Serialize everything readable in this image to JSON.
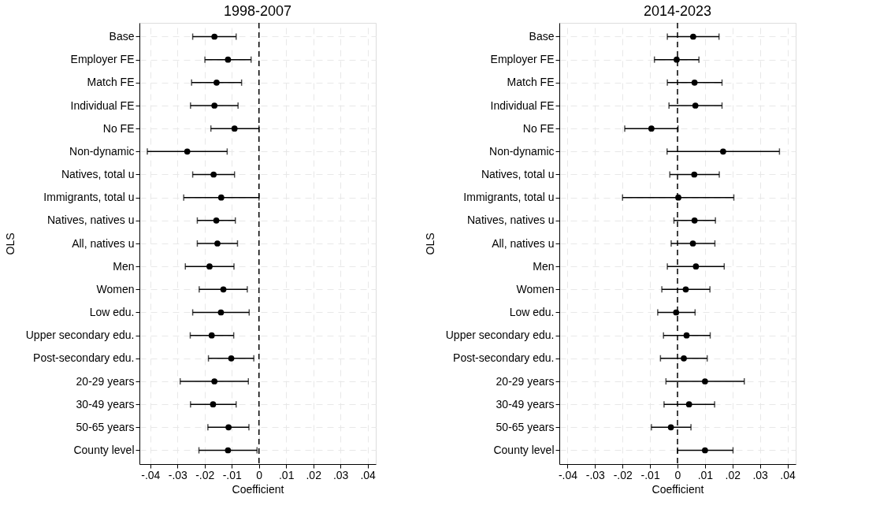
{
  "chart_data": [
    {
      "type": "scatter",
      "orientation": "horizontal",
      "title": "1998-2007",
      "xlabel": "Coefficient",
      "ylabel": "OLS",
      "marker": "circle",
      "color": "#000000",
      "grid": true,
      "categories": [
        "Base",
        "Employer FE",
        "Match FE",
        "Individual FE",
        "No FE",
        "Non-dynamic",
        "Natives, total u",
        "Immigrants, total u",
        "Natives, natives u",
        "All, natives u",
        "Men",
        "Women",
        "Low edu.",
        "Upper secondary edu.",
        "Post-secondary edu.",
        "20-29 years",
        "30-49 years",
        "50-65 years",
        "County level"
      ],
      "values": [
        -0.0164,
        -0.0114,
        -0.0156,
        -0.0164,
        -0.009,
        -0.0264,
        -0.0167,
        -0.0139,
        -0.0157,
        -0.0153,
        -0.0182,
        -0.0131,
        -0.014,
        -0.0174,
        -0.0102,
        -0.0164,
        -0.0169,
        -0.0112,
        -0.0114
      ],
      "errors": [
        [
          -0.0244,
          -0.0084
        ],
        [
          -0.0199,
          -0.0029
        ],
        [
          -0.0248,
          -0.0064
        ],
        [
          -0.0252,
          -0.0077
        ],
        [
          -0.0177,
          0.0
        ],
        [
          -0.0411,
          -0.0117
        ],
        [
          -0.0244,
          -0.009
        ],
        [
          -0.0277,
          0.0
        ],
        [
          -0.0227,
          -0.0087
        ],
        [
          -0.0227,
          -0.0079
        ],
        [
          -0.0271,
          -0.0092
        ],
        [
          -0.022,
          -0.0043
        ],
        [
          -0.0244,
          -0.0036
        ],
        [
          -0.0253,
          -0.0093
        ],
        [
          -0.0186,
          -0.0019
        ],
        [
          -0.029,
          -0.0039
        ],
        [
          -0.0252,
          -0.0084
        ],
        [
          -0.0188,
          -0.0037
        ],
        [
          -0.0221,
          -0.0007
        ]
      ],
      "xlim": [
        -0.044,
        0.043
      ],
      "xticks": [
        {
          "value": -0.04,
          "label": "-.04"
        },
        {
          "value": -0.03,
          "label": "-.03"
        },
        {
          "value": -0.02,
          "label": "-.02"
        },
        {
          "value": -0.01,
          "label": "-.01"
        },
        0,
        {
          "value": 0.01,
          "label": ".01"
        },
        {
          "value": 0.02,
          "label": ".02"
        },
        {
          "value": 0.03,
          "label": ".03"
        },
        {
          "value": 0.04,
          "label": ".04"
        }
      ],
      "ref_lines": [
        {
          "axis": "x",
          "value": 0,
          "line_style": "dashed",
          "color": "#000000"
        }
      ]
    },
    {
      "type": "scatter",
      "orientation": "horizontal",
      "title": "2014-2023",
      "xlabel": "Coefficient",
      "ylabel": "OLS",
      "marker": "circle",
      "color": "#000000",
      "grid": true,
      "categories": [
        "Base",
        "Employer FE",
        "Match FE",
        "Individual FE",
        "No FE",
        "Non-dynamic",
        "Natives, total u",
        "Immigrants, total u",
        "Natives, natives u",
        "All, natives u",
        "Men",
        "Women",
        "Low edu.",
        "Upper secondary edu.",
        "Post-secondary edu.",
        "20-29 years",
        "30-49 years",
        "50-65 years",
        "County level"
      ],
      "values": [
        0.0057,
        -0.0003,
        0.0062,
        0.0065,
        -0.0095,
        0.0166,
        0.0061,
        0.0003,
        0.0062,
        0.0056,
        0.0067,
        0.003,
        -0.0005,
        0.0033,
        0.0023,
        0.01,
        0.0042,
        -0.0024,
        0.01
      ],
      "errors": [
        [
          -0.0037,
          0.0151
        ],
        [
          -0.0084,
          0.0078
        ],
        [
          -0.0037,
          0.0162
        ],
        [
          -0.0031,
          0.0162
        ],
        [
          -0.0192,
          0.0002
        ],
        [
          -0.0038,
          0.0371
        ],
        [
          -0.0028,
          0.0152
        ],
        [
          -0.02,
          0.0205
        ],
        [
          -0.0013,
          0.0138
        ],
        [
          -0.0023,
          0.0136
        ],
        [
          -0.0037,
          0.017
        ],
        [
          -0.0057,
          0.0118
        ],
        [
          -0.0072,
          0.0064
        ],
        [
          -0.0051,
          0.0119
        ],
        [
          -0.0062,
          0.0108
        ],
        [
          -0.0042,
          0.0243
        ],
        [
          -0.0049,
          0.0135
        ],
        [
          -0.0095,
          0.0049
        ],
        [
          0.0,
          0.0202
        ]
      ],
      "xlim": [
        -0.043,
        0.043
      ],
      "xticks": [
        {
          "value": -0.04,
          "label": "-.04"
        },
        {
          "value": -0.03,
          "label": "-.03"
        },
        {
          "value": -0.02,
          "label": "-.02"
        },
        {
          "value": -0.01,
          "label": "-.01"
        },
        0,
        {
          "value": 0.01,
          "label": ".01"
        },
        {
          "value": 0.02,
          "label": ".02"
        },
        {
          "value": 0.03,
          "label": ".03"
        },
        {
          "value": 0.04,
          "label": ".04"
        }
      ],
      "ref_lines": [
        {
          "axis": "x",
          "value": 0,
          "line_style": "dashed",
          "color": "#000000"
        }
      ]
    }
  ]
}
